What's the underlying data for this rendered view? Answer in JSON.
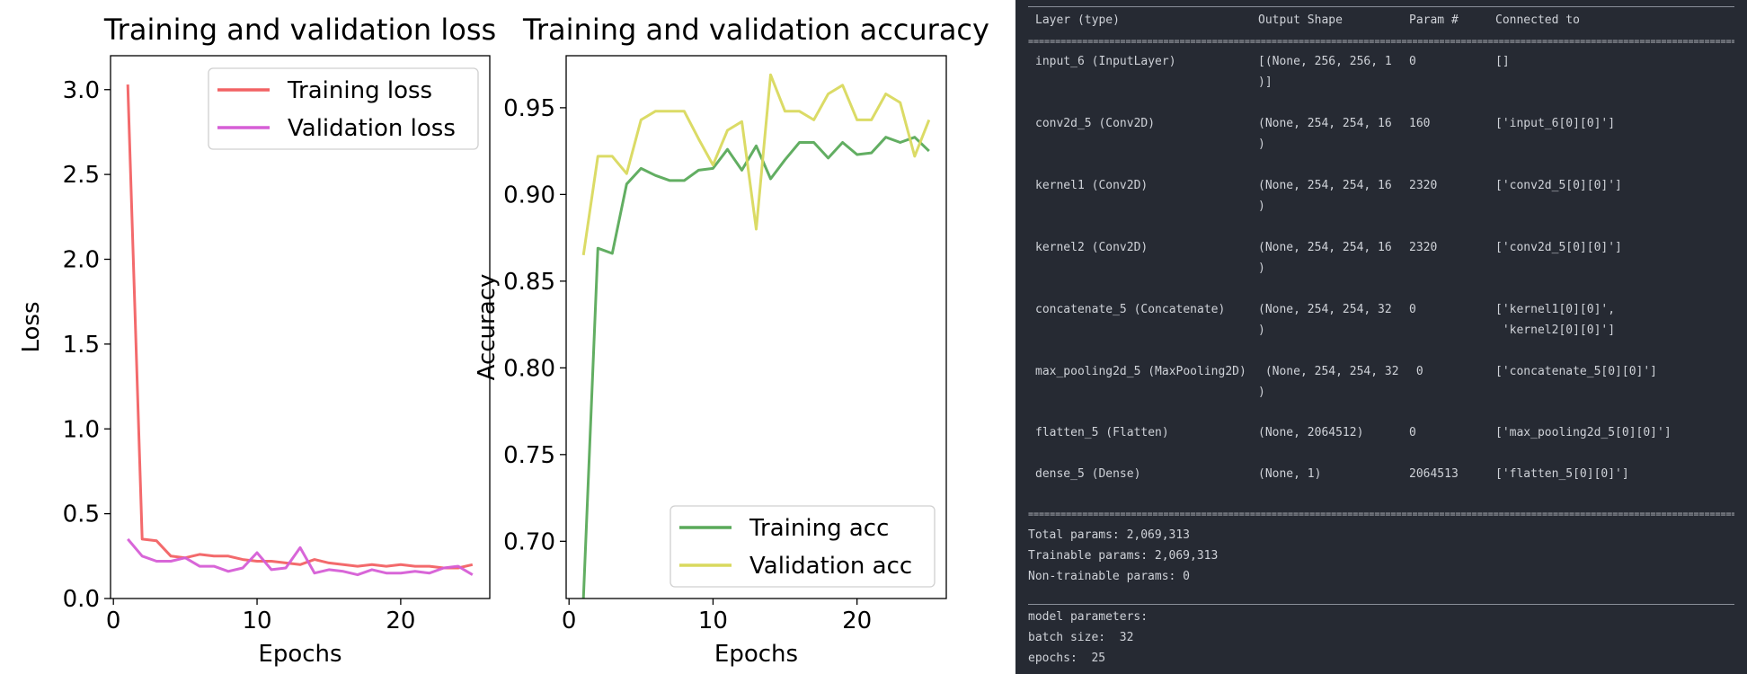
{
  "charts": {
    "loss": {
      "chart_data": {
        "type": "line",
        "title": "Training and validation loss",
        "xlabel": "Epochs",
        "ylabel": "Loss",
        "xlim": [
          -0.2,
          26.2
        ],
        "ylim": [
          0,
          3.2
        ],
        "xticks": [
          0,
          10,
          20
        ],
        "yticks": [
          0.0,
          0.5,
          1.0,
          1.5,
          2.0,
          2.5,
          3.0
        ],
        "ytick_labels": [
          "0.0",
          "0.5",
          "1.0",
          "1.5",
          "2.0",
          "2.5",
          "3.0"
        ],
        "legend_position": "top-right",
        "x": [
          1,
          2,
          3,
          4,
          5,
          6,
          7,
          8,
          9,
          10,
          11,
          12,
          13,
          14,
          15,
          16,
          17,
          18,
          19,
          20,
          21,
          22,
          23,
          24,
          25
        ],
        "series": [
          {
            "name": "Training loss",
            "color": "#f26264",
            "values": [
              3.03,
              0.35,
              0.34,
              0.25,
              0.24,
              0.26,
              0.25,
              0.25,
              0.23,
              0.22,
              0.22,
              0.21,
              0.2,
              0.23,
              0.21,
              0.2,
              0.19,
              0.2,
              0.19,
              0.2,
              0.19,
              0.19,
              0.18,
              0.18,
              0.2
            ]
          },
          {
            "name": "Validation loss",
            "color": "#d65ed6",
            "values": [
              0.35,
              0.25,
              0.22,
              0.22,
              0.24,
              0.19,
              0.19,
              0.16,
              0.18,
              0.27,
              0.17,
              0.18,
              0.3,
              0.15,
              0.17,
              0.16,
              0.14,
              0.17,
              0.15,
              0.15,
              0.16,
              0.15,
              0.18,
              0.19,
              0.14
            ]
          }
        ]
      }
    },
    "acc": {
      "chart_data": {
        "type": "line",
        "title": "Training and validation accuracy",
        "xlabel": "Epochs",
        "ylabel": "Accuracy",
        "xlim": [
          -0.2,
          26.2
        ],
        "ylim": [
          0.667,
          0.98
        ],
        "xticks": [
          0,
          10,
          20
        ],
        "yticks": [
          0.7,
          0.75,
          0.8,
          0.85,
          0.9,
          0.95
        ],
        "ytick_labels": [
          "0.70",
          "0.75",
          "0.80",
          "0.85",
          "0.90",
          "0.95"
        ],
        "legend_position": "bottom-right",
        "x": [
          1,
          2,
          3,
          4,
          5,
          6,
          7,
          8,
          9,
          10,
          11,
          12,
          13,
          14,
          15,
          16,
          17,
          18,
          19,
          20,
          21,
          22,
          23,
          24,
          25
        ],
        "series": [
          {
            "name": "Training acc",
            "color": "#5aaa5a",
            "values": [
              0.667,
              0.869,
              0.866,
              0.906,
              0.915,
              0.911,
              0.908,
              0.908,
              0.914,
              0.915,
              0.926,
              0.914,
              0.928,
              0.909,
              0.92,
              0.93,
              0.93,
              0.921,
              0.93,
              0.923,
              0.924,
              0.933,
              0.93,
              0.933,
              0.925
            ]
          },
          {
            "name": "Validation acc",
            "color": "#d9d95e",
            "values": [
              0.865,
              0.922,
              0.922,
              0.912,
              0.943,
              0.948,
              0.948,
              0.948,
              0.932,
              0.917,
              0.937,
              0.942,
              0.88,
              0.969,
              0.948,
              0.948,
              0.943,
              0.958,
              0.963,
              0.943,
              0.943,
              0.958,
              0.953,
              0.922,
              0.943
            ]
          }
        ]
      }
    }
  },
  "model_summary": {
    "headers": [
      "Layer (type)",
      "Output Shape",
      "Param #",
      "Connected to"
    ],
    "rows": [
      {
        "layer": "input_6 (InputLayer)",
        "shape": [
          "[(None, 256, 256, 1",
          ")]"
        ],
        "params": "0",
        "connected": [
          "[]"
        ]
      },
      {
        "layer": "conv2d_5 (Conv2D)",
        "shape": [
          "(None, 254, 254, 16",
          ")"
        ],
        "params": "160",
        "connected": [
          "['input_6[0][0]']"
        ]
      },
      {
        "layer": "kernel1 (Conv2D)",
        "shape": [
          "(None, 254, 254, 16",
          ")"
        ],
        "params": "2320",
        "connected": [
          "['conv2d_5[0][0]']"
        ]
      },
      {
        "layer": "kernel2 (Conv2D)",
        "shape": [
          "(None, 254, 254, 16",
          ")"
        ],
        "params": "2320",
        "connected": [
          "['conv2d_5[0][0]']"
        ]
      },
      {
        "layer": "concatenate_5 (Concatenate)",
        "shape": [
          "(None, 254, 254, 32",
          ")"
        ],
        "params": "0",
        "connected": [
          "['kernel1[0][0]',",
          " 'kernel2[0][0]']"
        ]
      },
      {
        "layer": "max_pooling2d_5 (MaxPooling2D)",
        "shape": [
          " (None, 254, 254, 32",
          ")"
        ],
        "params": " 0",
        "connected": [
          "['concatenate_5[0][0]']"
        ]
      },
      {
        "layer": "flatten_5 (Flatten)",
        "shape": [
          "(None, 2064512)"
        ],
        "params": "0",
        "connected": [
          "['max_pooling2d_5[0][0]']"
        ]
      },
      {
        "layer": "dense_5 (Dense)",
        "shape": [
          "(None, 1)"
        ],
        "params": "2064513",
        "connected": [
          "['flatten_5[0][0]']"
        ]
      }
    ],
    "separator": "=================================================================================================================================================",
    "total_params": "Total params: 2,069,313",
    "trainable_params": "Trainable params: 2,069,313",
    "non_trainable_params": "Non-trainable params: 0",
    "model_parameters_label": "model parameters:",
    "batch_size": "batch size:  32",
    "epochs": "epochs:  25"
  }
}
